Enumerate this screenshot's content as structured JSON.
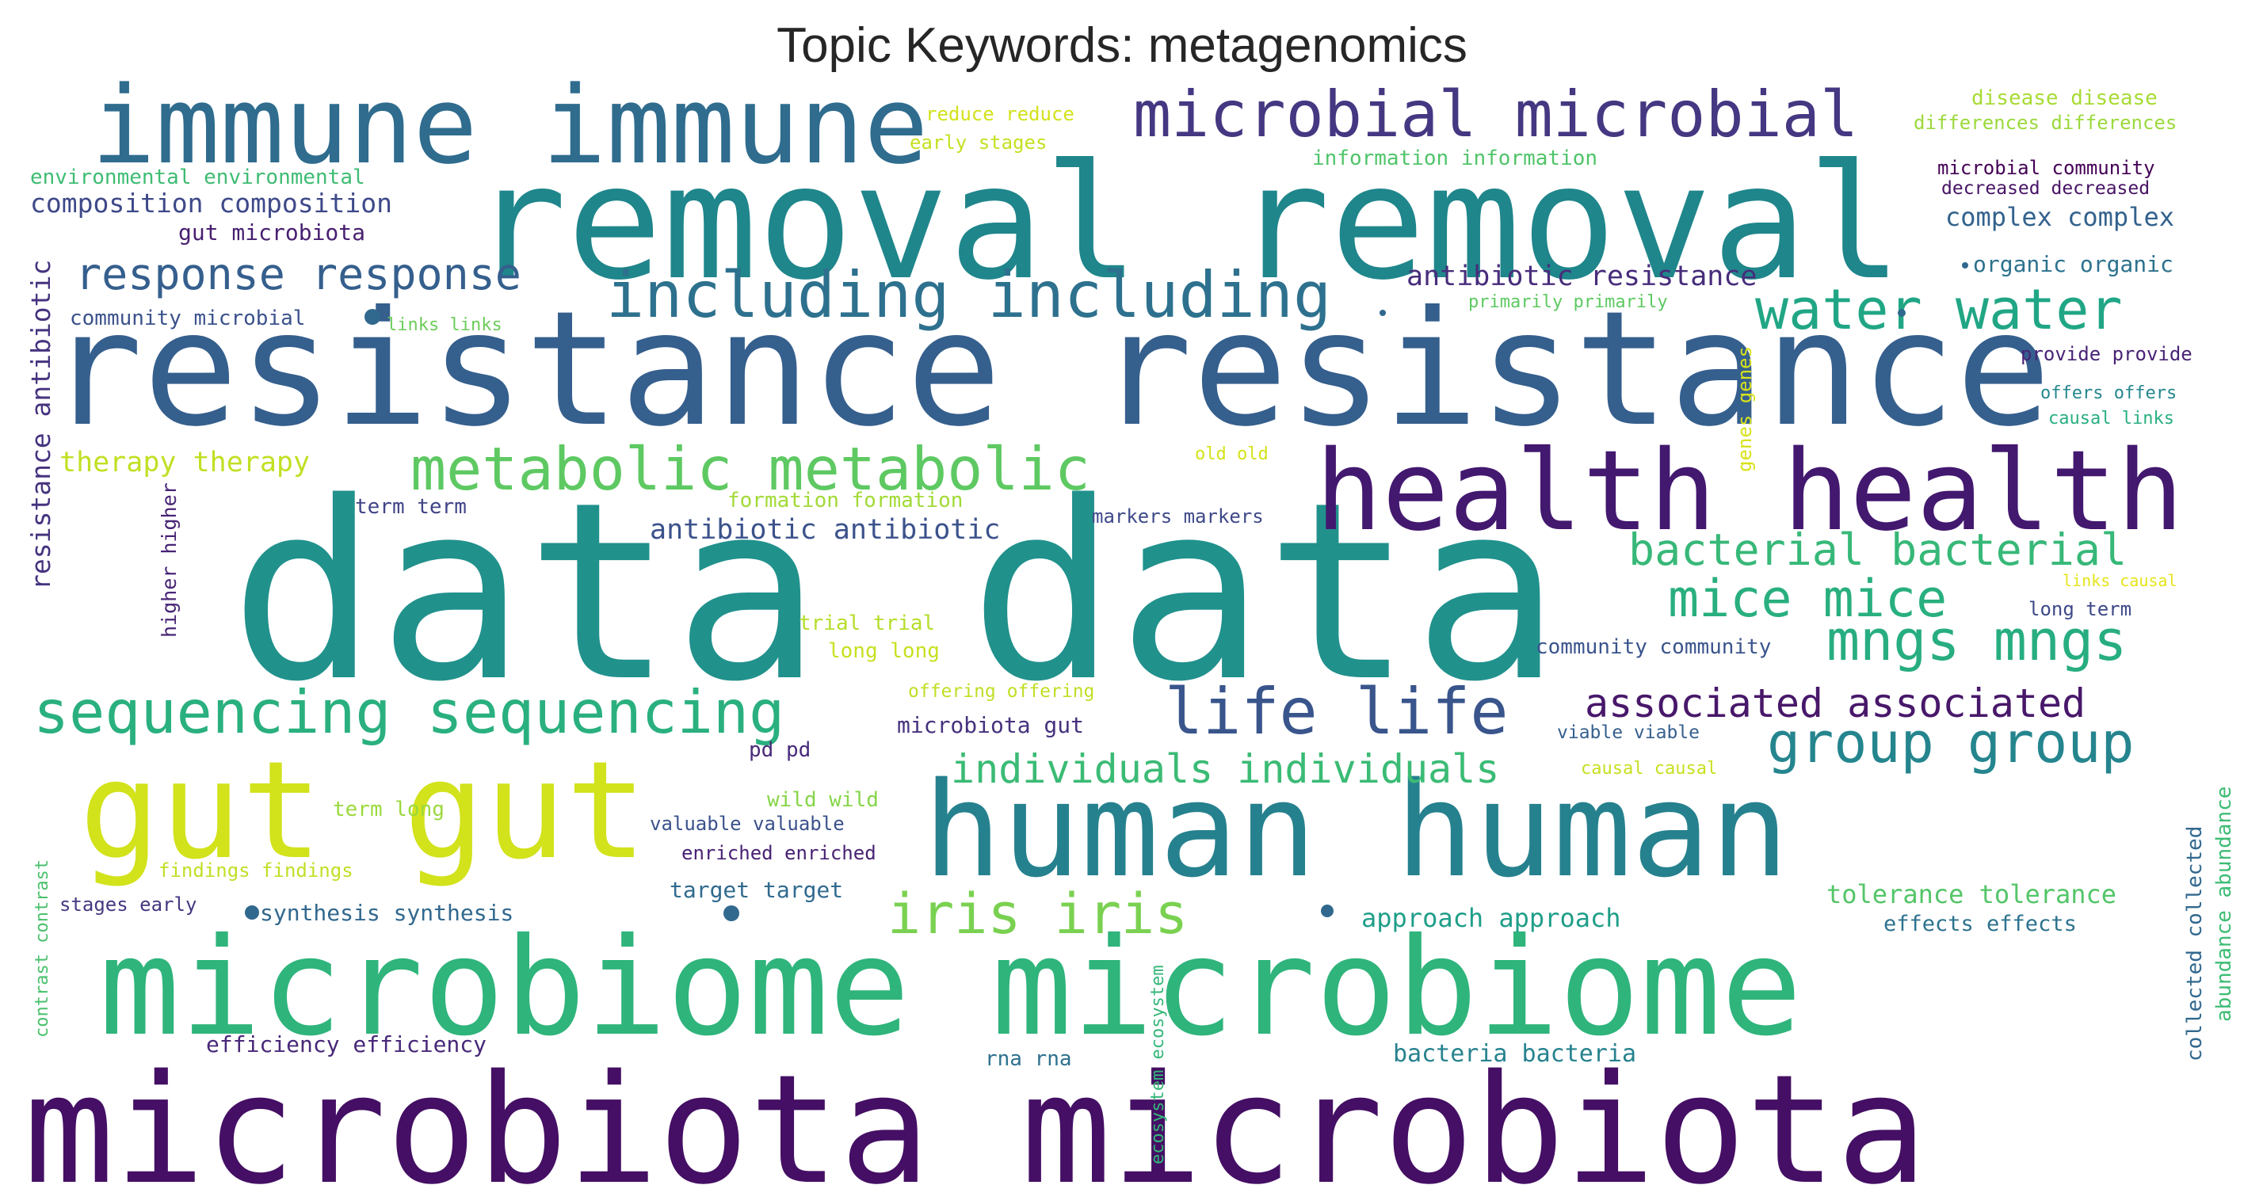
{
  "title": "Topic Keywords: metagenomics",
  "words": [
    {
      "text": "data data",
      "color": "#21918c"
    },
    {
      "text": "resistance resistance",
      "color": "#355f8d"
    },
    {
      "text": "removal removal",
      "color": "#1f868b"
    },
    {
      "text": "microbiota microbiota",
      "color": "#440f64"
    },
    {
      "text": "microbiome microbiome",
      "color": "#2fb47c"
    },
    {
      "text": "human human",
      "color": "#26818e"
    },
    {
      "text": "health health",
      "color": "#43186f"
    },
    {
      "text": "immune immune",
      "color": "#2f6c8e"
    },
    {
      "text": "gut gut",
      "color": "#d2e21b"
    },
    {
      "text": "microbial microbial",
      "color": "#453781"
    },
    {
      "text": "metabolic metabolic",
      "color": "#5ec962"
    },
    {
      "text": "including including",
      "color": "#2d718e"
    },
    {
      "text": "sequencing sequencing",
      "color": "#2ab07f"
    },
    {
      "text": "life life",
      "color": "#39558c"
    },
    {
      "text": "iris iris",
      "color": "#7ad151"
    },
    {
      "text": "water water",
      "color": "#21a685"
    },
    {
      "text": "group group",
      "color": "#25858e"
    },
    {
      "text": "mngs mngs",
      "color": "#27ad81"
    },
    {
      "text": "mice mice",
      "color": "#29af7f"
    },
    {
      "text": "response response",
      "color": "#355f8d"
    },
    {
      "text": "bacterial bacterial",
      "color": "#37b878"
    },
    {
      "text": "associated associated",
      "color": "#48186a"
    },
    {
      "text": "individuals individuals",
      "color": "#3bbb75"
    },
    {
      "text": "antibiotic antibiotic",
      "color": "#3b528b"
    },
    {
      "text": "antibiotic resistance",
      "color": "#472d7b"
    },
    {
      "text": "therapy therapy",
      "color": "#c2df23"
    },
    {
      "text": "composition composition",
      "color": "#3e4989"
    },
    {
      "text": "resistance antibiotic",
      "color": "#46337f"
    },
    {
      "text": "complex complex",
      "color": "#33628d"
    },
    {
      "text": "approach approach",
      "color": "#1f9e89"
    },
    {
      "text": "tolerance tolerance",
      "color": "#54c568"
    },
    {
      "text": "bacteria bacteria",
      "color": "#26828e"
    },
    {
      "text": "efficiency efficiency",
      "color": "#482878"
    },
    {
      "text": "gut microbiota",
      "color": "#481f70"
    },
    {
      "text": "synthesis synthesis",
      "color": "#31688e"
    },
    {
      "text": "microbiota gut",
      "color": "#46327e"
    },
    {
      "text": "environmental environmental",
      "color": "#3fbc73"
    },
    {
      "text": "community microbial",
      "color": "#3b528b"
    },
    {
      "text": "wild wild",
      "color": "#86d549"
    },
    {
      "text": "term term",
      "color": "#414487"
    },
    {
      "text": "pd pd",
      "color": "#472a7a"
    },
    {
      "text": "formation formation",
      "color": "#a2da37"
    },
    {
      "text": "higher higher",
      "color": "#482475"
    },
    {
      "text": "markers markers",
      "color": "#3e4989"
    },
    {
      "text": "term long",
      "color": "#9bd93c"
    },
    {
      "text": "target target",
      "color": "#306a8e"
    },
    {
      "text": "rna rna",
      "color": "#2d718e"
    },
    {
      "text": "trial trial",
      "color": "#b5de2b"
    },
    {
      "text": "long long",
      "color": "#c8e020"
    },
    {
      "text": "microbial community",
      "color": "#440154"
    },
    {
      "text": "decreased decreased",
      "color": "#471365"
    },
    {
      "text": "organic organic",
      "color": "#2c728e"
    },
    {
      "text": "valuable valuable",
      "color": "#3b528b"
    },
    {
      "text": "enriched enriched",
      "color": "#482173"
    },
    {
      "text": "community community",
      "color": "#3a548c"
    },
    {
      "text": "collected collected",
      "color": "#31688e"
    },
    {
      "text": "abundance abundance",
      "color": "#3dbc74"
    },
    {
      "text": "effects effects",
      "color": "#2c728e"
    },
    {
      "text": "findings findings",
      "color": "#c0df25"
    },
    {
      "text": "stages early",
      "color": "#453882"
    },
    {
      "text": "information information",
      "color": "#50c46a"
    },
    {
      "text": "disease disease",
      "color": "#a8db34"
    },
    {
      "text": "differences differences",
      "color": "#9bd93c"
    },
    {
      "text": "provide provide",
      "color": "#482475"
    },
    {
      "text": "genes genes",
      "color": "#d8e219"
    },
    {
      "text": "long term",
      "color": "#3e4989"
    },
    {
      "text": "viable viable",
      "color": "#355f8d"
    },
    {
      "text": "offers offers",
      "color": "#24878e"
    },
    {
      "text": "causal links",
      "color": "#29af7f"
    },
    {
      "text": "links causal",
      "color": "#e5e419"
    },
    {
      "text": "causal causal",
      "color": "#c8e020"
    },
    {
      "text": "ecosystem ecosystem",
      "color": "#35b779"
    },
    {
      "text": "contrast contrast",
      "color": "#4ac16d"
    },
    {
      "text": "offering offering",
      "color": "#c0df25"
    },
    {
      "text": "old old",
      "color": "#d5e21a"
    },
    {
      "text": "primarily primarily",
      "color": "#5ec962"
    },
    {
      "text": "links links",
      "color": "#6ccd5a"
    },
    {
      "text": "reduce reduce",
      "color": "#d2e21b"
    },
    {
      "text": "early stages",
      "color": "#c5e021"
    }
  ]
}
